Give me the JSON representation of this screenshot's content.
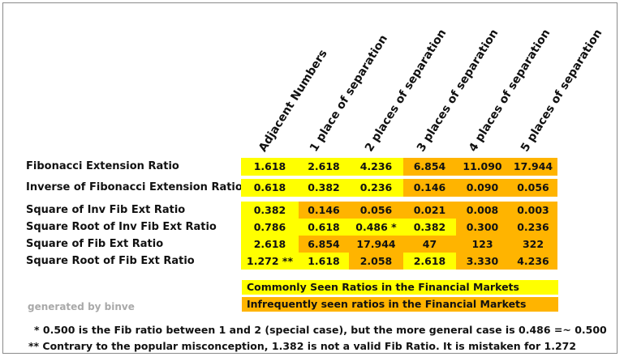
{
  "colors": {
    "common": "#ffff00",
    "infrequent": "#ffb400"
  },
  "column_headers": [
    "Adjacent Numbers",
    "1 place of separation",
    "2 places of separation",
    "3 places of separation",
    "4 places of separation",
    "5 places of separation"
  ],
  "rows": [
    {
      "label": "Fibonacci Extension Ratio",
      "cells": [
        {
          "v": "1.618",
          "c": "common"
        },
        {
          "v": "2.618",
          "c": "common"
        },
        {
          "v": "4.236",
          "c": "common"
        },
        {
          "v": "6.854",
          "c": "infrequent"
        },
        {
          "v": "11.090",
          "c": "infrequent"
        },
        {
          "v": "17.944",
          "c": "infrequent"
        }
      ]
    },
    {
      "label": "Inverse of Fibonacci Extension Ratio",
      "cells": [
        {
          "v": "0.618",
          "c": "common"
        },
        {
          "v": "0.382",
          "c": "common"
        },
        {
          "v": "0.236",
          "c": "common"
        },
        {
          "v": "0.146",
          "c": "infrequent"
        },
        {
          "v": "0.090",
          "c": "infrequent"
        },
        {
          "v": "0.056",
          "c": "infrequent"
        }
      ]
    },
    {
      "label": "Square of Inv Fib Ext Ratio",
      "cells": [
        {
          "v": "0.382",
          "c": "common"
        },
        {
          "v": "0.146",
          "c": "infrequent"
        },
        {
          "v": "0.056",
          "c": "infrequent"
        },
        {
          "v": "0.021",
          "c": "infrequent"
        },
        {
          "v": "0.008",
          "c": "infrequent"
        },
        {
          "v": "0.003",
          "c": "infrequent"
        }
      ]
    },
    {
      "label": "Square Root of Inv Fib Ext Ratio",
      "cells": [
        {
          "v": "0.786",
          "c": "common"
        },
        {
          "v": "0.618",
          "c": "common"
        },
        {
          "v": "0.486 *",
          "c": "common"
        },
        {
          "v": "0.382",
          "c": "common"
        },
        {
          "v": "0.300",
          "c": "infrequent"
        },
        {
          "v": "0.236",
          "c": "infrequent"
        }
      ]
    },
    {
      "label": "Square of Fib Ext Ratio",
      "cells": [
        {
          "v": "2.618",
          "c": "common"
        },
        {
          "v": "6.854",
          "c": "infrequent"
        },
        {
          "v": "17.944",
          "c": "infrequent"
        },
        {
          "v": "47",
          "c": "infrequent"
        },
        {
          "v": "123",
          "c": "infrequent"
        },
        {
          "v": "322",
          "c": "infrequent"
        }
      ]
    },
    {
      "label": "Square Root of Fib Ext Ratio",
      "cells": [
        {
          "v": "1.272 **",
          "c": "common"
        },
        {
          "v": "1.618",
          "c": "common"
        },
        {
          "v": "2.058",
          "c": "infrequent"
        },
        {
          "v": "2.618",
          "c": "common"
        },
        {
          "v": "3.330",
          "c": "infrequent"
        },
        {
          "v": "4.236",
          "c": "infrequent"
        }
      ]
    }
  ],
  "legend": {
    "common": "Commonly Seen Ratios in the Financial Markets",
    "infrequent": "Infrequently seen ratios in the Financial Markets"
  },
  "credit": "generated by binve",
  "notes": [
    "* 0.500 is the Fib ratio between 1 and 2 (special case), but the more general case is 0.486 =~ 0.500",
    "** Contrary to the popular misconception, 1.382 is not a valid Fib Ratio. It is mistaken for 1.272"
  ]
}
